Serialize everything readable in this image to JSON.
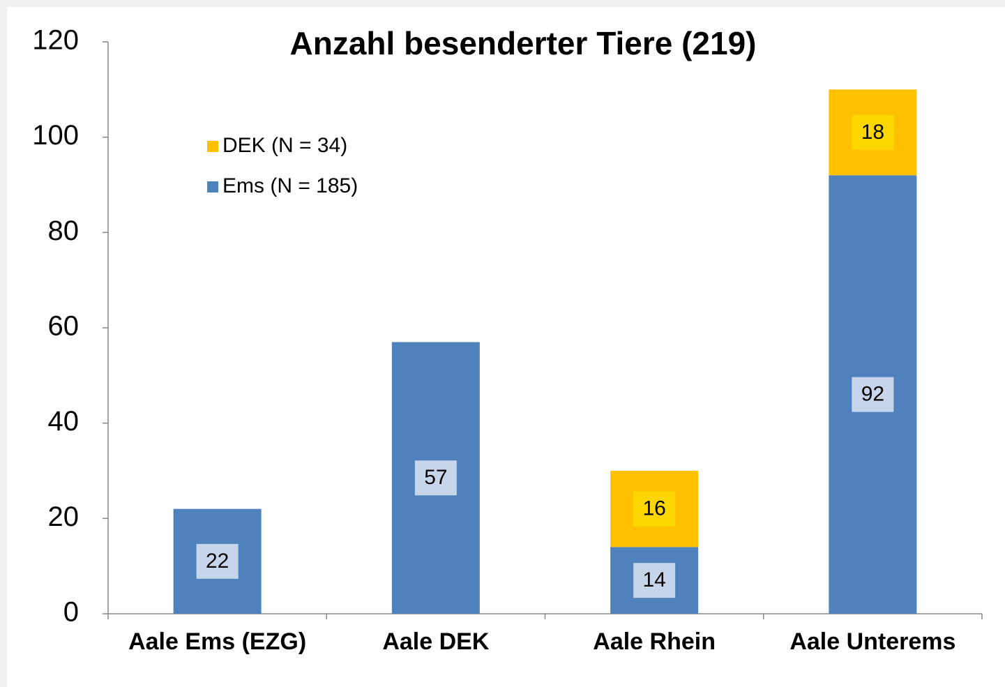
{
  "chart_data": {
    "type": "stacked_bar",
    "title": "Anzahl besenderter Tiere (219)",
    "categories": [
      "Aale Ems (EZG)",
      "Aale DEK",
      "Aale Rhein",
      "Aale Unterems"
    ],
    "series": [
      {
        "name": "Ems (N = 185)",
        "color": "#4f81bd",
        "values": [
          22,
          57,
          14,
          92
        ]
      },
      {
        "name": "DEK (N = 34)",
        "color": "#ffc000",
        "values": [
          null,
          null,
          16,
          18
        ]
      }
    ],
    "ylim": [
      0,
      120
    ],
    "yticks": [
      0,
      20,
      40,
      60,
      80,
      100,
      120
    ],
    "grid": false,
    "legend": "upper left"
  }
}
